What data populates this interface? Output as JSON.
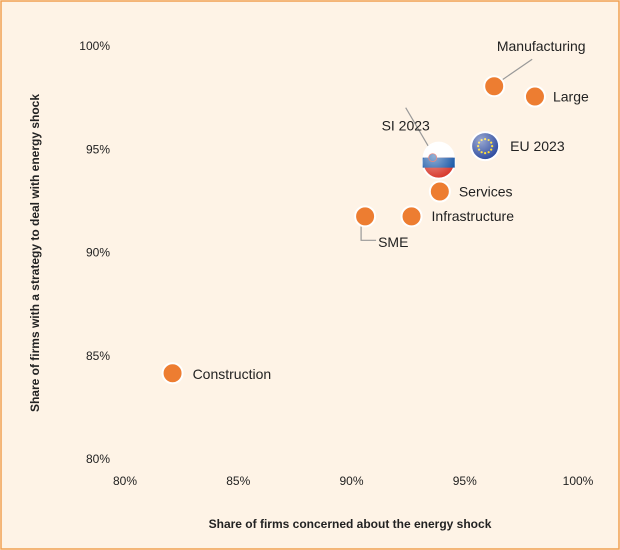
{
  "chart_data": {
    "type": "scatter",
    "xlabel": "Share of firms concerned about the energy shock",
    "ylabel": "Share of firms with a  strategy to deal with energy shock",
    "xlim": [
      80,
      100
    ],
    "xticks": [
      {
        "value": 80,
        "label": "80%"
      },
      {
        "value": 85,
        "label": "85%"
      },
      {
        "value": 90,
        "label": "90%"
      },
      {
        "value": 95,
        "label": "95%"
      },
      {
        "value": 100,
        "label": "100%"
      }
    ],
    "ylim": [
      80,
      100
    ],
    "yticks": [
      {
        "value": 80,
        "label": "80%"
      },
      {
        "value": 85,
        "label": "85%"
      },
      {
        "value": 90,
        "label": "90%"
      },
      {
        "value": 95,
        "label": "95%"
      },
      {
        "value": 100,
        "label": "100%"
      }
    ],
    "grid": false,
    "series": [
      {
        "name": "Manufacturing",
        "color": "#ed7d31",
        "x": [
          96.3
        ],
        "values": [
          98.1
        ]
      },
      {
        "name": "Large",
        "color": "#ed7d31",
        "x": [
          98.1
        ],
        "values": [
          97.6
        ]
      },
      {
        "name": "EU 2023",
        "color": "#1f3f99",
        "marker": "flag-eu",
        "x": [
          95.9
        ],
        "values": [
          95.2
        ]
      },
      {
        "name": "SI 2023",
        "color": "#d52b1e",
        "marker": "flag-si",
        "x": [
          93.85
        ],
        "values": [
          94.4
        ]
      },
      {
        "name": "Services",
        "color": "#ed7d31",
        "x": [
          93.9
        ],
        "values": [
          93.0
        ]
      },
      {
        "name": "Infrastructure",
        "color": "#ed7d31",
        "x": [
          92.65
        ],
        "values": [
          91.8
        ]
      },
      {
        "name": "SME",
        "color": "#ed7d31",
        "x": [
          90.6
        ],
        "values": [
          91.8
        ]
      },
      {
        "name": "Construction",
        "color": "#ed7d31",
        "x": [
          82.1
        ],
        "values": [
          84.2
        ]
      }
    ]
  }
}
